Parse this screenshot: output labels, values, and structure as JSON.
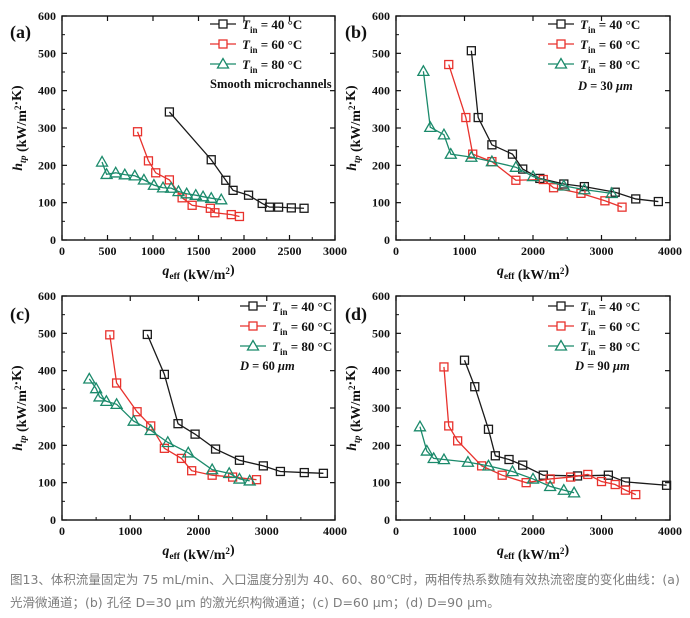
{
  "caption": "图13、体积流量固定为 75 mL/min、入口温度分别为 40、60、80℃时，两相传热系数随有效热流密度的变化曲线：(a) 光滑微通道；(b) 孔径 D=30 μm 的激光织构微通道；(c) D=60 μm；(d) D=90 μm。",
  "colors": {
    "40": "#1a1a1a",
    "60": "#e8322d",
    "80": "#1b8a6b"
  },
  "chart_data": [
    {
      "type": "line",
      "label": "(a)",
      "annotation": "Smooth microchannels",
      "xlabel": "q_eff (kW/m²)",
      "ylabel": "h_tp (kW/m²·K)",
      "xlim": [
        0,
        3000
      ],
      "ylim": [
        0,
        600
      ],
      "xticks": [
        0,
        500,
        1000,
        1500,
        2000,
        2500,
        3000
      ],
      "yticks": [
        0,
        100,
        200,
        300,
        400,
        500,
        600
      ],
      "series": [
        {
          "name": "T_in = 40 °C",
          "color": "#1a1a1a",
          "marker": "square",
          "x": [
            1180,
            1640,
            1800,
            1880,
            2050,
            2200,
            2280,
            2380,
            2520,
            2660
          ],
          "y": [
            343,
            215,
            160,
            133,
            120,
            98,
            88,
            88,
            86,
            85
          ]
        },
        {
          "name": "T_in = 60 °C",
          "color": "#e8322d",
          "marker": "square",
          "x": [
            830,
            950,
            1030,
            1180,
            1320,
            1430,
            1630,
            1680,
            1860,
            1950
          ],
          "y": [
            290,
            212,
            180,
            161,
            113,
            93,
            85,
            73,
            68,
            63
          ]
        },
        {
          "name": "T_in = 80 °C",
          "color": "#1b8a6b",
          "marker": "triangle",
          "x": [
            440,
            490,
            590,
            690,
            800,
            900,
            1010,
            1110,
            1200,
            1280,
            1370,
            1470,
            1550,
            1640,
            1750
          ],
          "y": [
            209,
            176,
            180,
            175,
            172,
            161,
            147,
            140,
            139,
            130,
            124,
            120,
            116,
            112,
            108
          ]
        }
      ]
    },
    {
      "type": "line",
      "label": "(b)",
      "annotation": "D = 30 μm",
      "xlabel": "q_eff (kW/m²)",
      "ylabel": "h_tp (kW/m²·K)",
      "xlim": [
        0,
        4000
      ],
      "ylim": [
        0,
        600
      ],
      "xticks": [
        0,
        1000,
        2000,
        3000,
        4000
      ],
      "yticks": [
        0,
        100,
        200,
        300,
        400,
        500,
        600
      ],
      "series": [
        {
          "name": "T_in = 40 °C",
          "color": "#1a1a1a",
          "marker": "square",
          "x": [
            1100,
            1200,
            1400,
            1700,
            1850,
            2100,
            2450,
            2750,
            3200,
            3500,
            3830
          ],
          "y": [
            507,
            328,
            255,
            230,
            190,
            165,
            150,
            143,
            128,
            110,
            103
          ]
        },
        {
          "name": "T_in = 60 °C",
          "color": "#e8322d",
          "marker": "square",
          "x": [
            770,
            1020,
            1120,
            1400,
            1750,
            2150,
            2300,
            2700,
            3050,
            3300
          ],
          "y": [
            470,
            328,
            230,
            210,
            160,
            162,
            140,
            125,
            105,
            88
          ]
        },
        {
          "name": "T_in = 80 °C",
          "color": "#1b8a6b",
          "marker": "triangle",
          "x": [
            400,
            500,
            700,
            800,
            1100,
            1400,
            1750,
            2000,
            2450,
            2750,
            3150
          ],
          "y": [
            452,
            302,
            282,
            230,
            222,
            210,
            195,
            170,
            145,
            135,
            125
          ]
        }
      ]
    },
    {
      "type": "line",
      "label": "(c)",
      "annotation": "D = 60 μm",
      "xlabel": "q_eff (kW/m²)",
      "ylabel": "h_tp (kW/m²·K)",
      "xlim": [
        0,
        4000
      ],
      "ylim": [
        0,
        600
      ],
      "xticks": [
        0,
        1000,
        2000,
        3000,
        4000
      ],
      "yticks": [
        0,
        100,
        200,
        300,
        400,
        500,
        600
      ],
      "series": [
        {
          "name": "T_in = 40 °C",
          "color": "#1a1a1a",
          "marker": "square",
          "x": [
            1250,
            1500,
            1700,
            1950,
            2250,
            2600,
            2950,
            3200,
            3550,
            3830
          ],
          "y": [
            497,
            390,
            258,
            230,
            190,
            160,
            145,
            130,
            127,
            125
          ]
        },
        {
          "name": "T_in = 60 °C",
          "color": "#e8322d",
          "marker": "square",
          "x": [
            700,
            800,
            1100,
            1300,
            1500,
            1750,
            1900,
            2200,
            2500,
            2850
          ],
          "y": [
            496,
            367,
            290,
            252,
            192,
            165,
            132,
            120,
            115,
            108
          ]
        },
        {
          "name": "T_in = 80 °C",
          "color": "#1b8a6b",
          "marker": "triangle",
          "x": [
            400,
            500,
            550,
            650,
            800,
            1050,
            1300,
            1550,
            1850,
            2200,
            2450,
            2600,
            2750
          ],
          "y": [
            378,
            352,
            330,
            318,
            310,
            265,
            240,
            208,
            180,
            135,
            125,
            110,
            105
          ]
        }
      ]
    },
    {
      "type": "line",
      "label": "(d)",
      "annotation": "D = 90 μm",
      "xlabel": "q_eff (kW/m²)",
      "ylabel": "h_tp (kW/m²·K)",
      "xlim": [
        0,
        4000
      ],
      "ylim": [
        0,
        600
      ],
      "xticks": [
        0,
        1000,
        2000,
        3000,
        4000
      ],
      "yticks": [
        0,
        100,
        200,
        300,
        400,
        500,
        600
      ],
      "series": [
        {
          "name": "T_in = 40 °C",
          "color": "#1a1a1a",
          "marker": "square",
          "x": [
            1000,
            1150,
            1350,
            1450,
            1650,
            1850,
            2150,
            2650,
            3100,
            3350,
            3950
          ],
          "y": [
            428,
            357,
            243,
            172,
            162,
            147,
            120,
            118,
            120,
            102,
            93
          ]
        },
        {
          "name": "T_in = 60 °C",
          "color": "#e8322d",
          "marker": "square",
          "x": [
            700,
            770,
            900,
            1250,
            1550,
            1900,
            2250,
            2550,
            2800,
            3000,
            3200,
            3350,
            3500
          ],
          "y": [
            410,
            252,
            212,
            145,
            120,
            100,
            110,
            115,
            122,
            103,
            95,
            80,
            68
          ]
        },
        {
          "name": "T_in = 80 °C",
          "color": "#1b8a6b",
          "marker": "triangle",
          "x": [
            350,
            450,
            550,
            700,
            1050,
            1350,
            1700,
            2000,
            2250,
            2450,
            2600
          ],
          "y": [
            250,
            185,
            165,
            162,
            155,
            145,
            130,
            110,
            90,
            80,
            73
          ]
        }
      ]
    }
  ]
}
